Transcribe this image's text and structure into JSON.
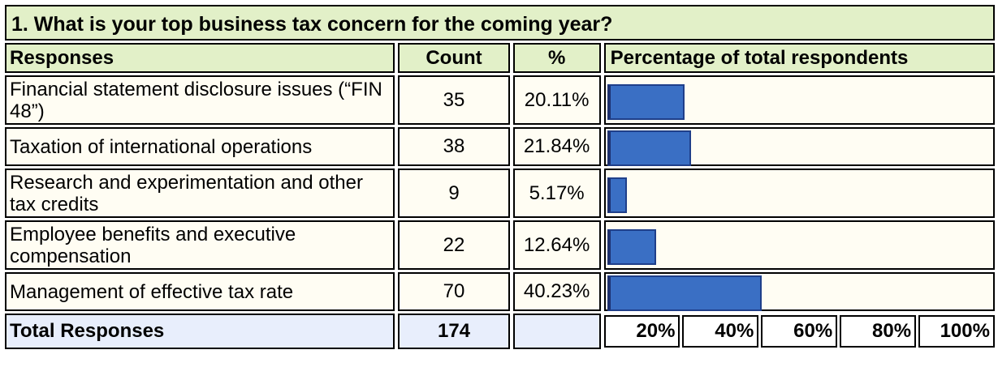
{
  "question": "1. What is your top business tax concern for the coming year?",
  "headers": {
    "responses": "Responses",
    "count": "Count",
    "percent": "%",
    "bar": "Percentage of total respondents"
  },
  "rows": [
    {
      "label": "Financial statement disclosure issues (“FIN 48”)",
      "count": "35",
      "percent": "20.11%"
    },
    {
      "label": "Taxation of international operations",
      "count": "38",
      "percent": "21.84%"
    },
    {
      "label": "Research and experimentation and other tax credits",
      "count": "9",
      "percent": "5.17%"
    },
    {
      "label": "Employee benefits and executive compensation",
      "count": "22",
      "percent": "12.64%"
    },
    {
      "label": "Management of effective tax rate",
      "count": "70",
      "percent": "40.23%"
    }
  ],
  "total": {
    "label": "Total Responses",
    "count": "174"
  },
  "scale_ticks": [
    "20%",
    "40%",
    "60%",
    "80%",
    "100%"
  ],
  "colors": {
    "header_bg": "#e2f0c8",
    "bar": "#3a6fc4",
    "total_bg": "#e8eefc",
    "cell_bg": "#fffdf3"
  },
  "chart_data": {
    "type": "bar",
    "categories": [
      "Financial statement disclosure issues (“FIN 48”)",
      "Taxation of international operations",
      "Research and experimentation and other tax credits",
      "Employee benefits and executive compensation",
      "Management of effective tax rate"
    ],
    "values": [
      20.11,
      21.84,
      5.17,
      12.64,
      40.23
    ],
    "xlim": [
      0,
      100
    ]
  }
}
